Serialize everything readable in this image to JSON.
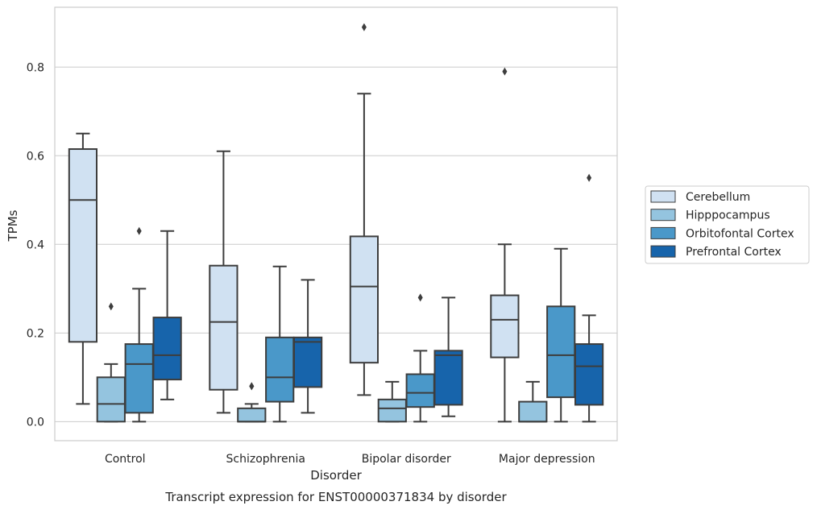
{
  "chart_data": {
    "type": "box",
    "caption": "Transcript expression for ENST00000371834 by disorder",
    "xlabel": "Disorder",
    "ylabel": "TPMs",
    "ylim": [
      -0.043,
      0.935
    ],
    "yticks": [
      0.0,
      0.2,
      0.4,
      0.6,
      0.8
    ],
    "ytick_labels": [
      "0.0",
      "0.2",
      "0.4",
      "0.6",
      "0.8"
    ],
    "grid": "horizontal",
    "legend_position": "right",
    "categories": [
      "Control",
      "Schizophrenia",
      "Bipolar disorder",
      "Major depression"
    ],
    "series": [
      {
        "name": "Cerebellum",
        "color": "#d0e1f2",
        "boxes": [
          {
            "whislo": 0.04,
            "q1": 0.18,
            "med": 0.5,
            "q3": 0.615,
            "whishi": 0.65,
            "fliers": []
          },
          {
            "whislo": 0.02,
            "q1": 0.072,
            "med": 0.225,
            "q3": 0.352,
            "whishi": 0.61,
            "fliers": []
          },
          {
            "whislo": 0.06,
            "q1": 0.133,
            "med": 0.305,
            "q3": 0.418,
            "whishi": 0.74,
            "fliers": [
              0.89
            ]
          },
          {
            "whislo": 0.0,
            "q1": 0.145,
            "med": 0.23,
            "q3": 0.285,
            "whishi": 0.4,
            "fliers": [
              0.79
            ]
          }
        ]
      },
      {
        "name": "Hipppocampus",
        "color": "#94c4df",
        "boxes": [
          {
            "whislo": 0.0,
            "q1": 0.0,
            "med": 0.04,
            "q3": 0.1,
            "whishi": 0.13,
            "fliers": [
              0.26
            ]
          },
          {
            "whislo": 0.0,
            "q1": 0.0,
            "med": 0.0,
            "q3": 0.03,
            "whishi": 0.04,
            "fliers": [
              0.08,
              0.08
            ]
          },
          {
            "whislo": 0.0,
            "q1": 0.0,
            "med": 0.03,
            "q3": 0.05,
            "whishi": 0.09,
            "fliers": []
          },
          {
            "whislo": 0.0,
            "q1": 0.0,
            "med": 0.0,
            "q3": 0.045,
            "whishi": 0.09,
            "fliers": []
          }
        ]
      },
      {
        "name": "Orbitofontal Cortex",
        "color": "#4a98c9",
        "boxes": [
          {
            "whislo": 0.0,
            "q1": 0.02,
            "med": 0.13,
            "q3": 0.175,
            "whishi": 0.3,
            "fliers": [
              0.43
            ]
          },
          {
            "whislo": 0.0,
            "q1": 0.045,
            "med": 0.1,
            "q3": 0.19,
            "whishi": 0.35,
            "fliers": []
          },
          {
            "whislo": 0.0,
            "q1": 0.033,
            "med": 0.065,
            "q3": 0.107,
            "whishi": 0.16,
            "fliers": [
              0.28
            ]
          },
          {
            "whislo": 0.0,
            "q1": 0.055,
            "med": 0.15,
            "q3": 0.26,
            "whishi": 0.39,
            "fliers": []
          }
        ]
      },
      {
        "name": "Prefrontal Cortex",
        "color": "#1764ab",
        "boxes": [
          {
            "whislo": 0.05,
            "q1": 0.095,
            "med": 0.15,
            "q3": 0.235,
            "whishi": 0.43,
            "fliers": []
          },
          {
            "whislo": 0.02,
            "q1": 0.078,
            "med": 0.18,
            "q3": 0.19,
            "whishi": 0.32,
            "fliers": []
          },
          {
            "whislo": 0.012,
            "q1": 0.038,
            "med": 0.15,
            "q3": 0.16,
            "whishi": 0.28,
            "fliers": []
          },
          {
            "whislo": 0.0,
            "q1": 0.038,
            "med": 0.125,
            "q3": 0.175,
            "whishi": 0.24,
            "fliers": [
              0.55
            ]
          }
        ]
      }
    ]
  }
}
